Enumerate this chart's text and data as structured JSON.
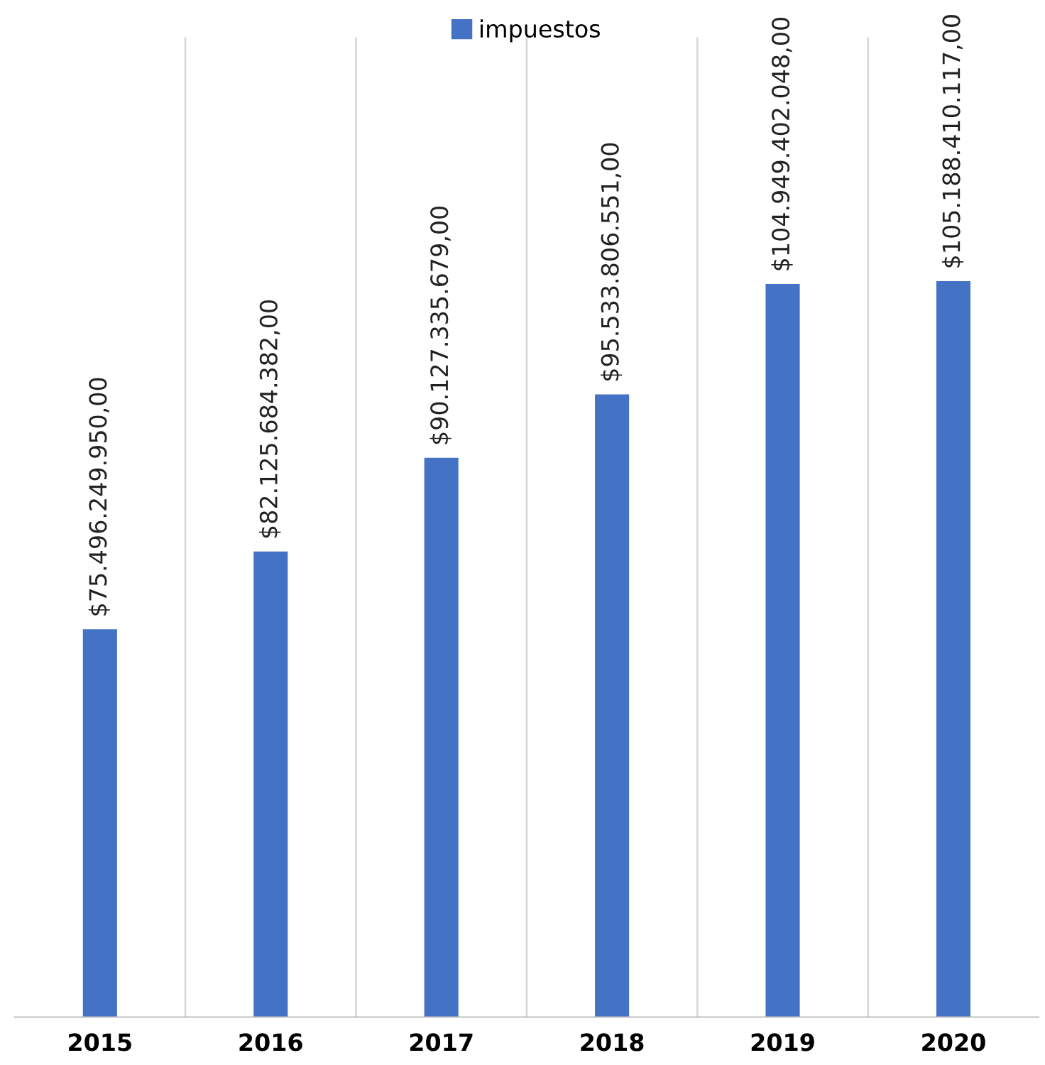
{
  "chart_data": {
    "type": "bar",
    "categories": [
      "2015",
      "2016",
      "2017",
      "2018",
      "2019",
      "2020"
    ],
    "series": [
      {
        "name": "impuestos",
        "color": "#4472c4",
        "values": [
          75496249950.0,
          82125684382.0,
          90127335679.0,
          95533806551.0,
          104949402048.0,
          105188410117.0
        ],
        "value_labels": [
          "$75.496.249.950,00",
          "$82.125.684.382,00",
          "$90.127.335.679,00",
          "$95.533.806.551,00",
          "$104.949.402.048,00",
          "$105.188.410.117,00"
        ]
      }
    ],
    "ylim": [
      42400000000,
      126000000000
    ],
    "tick_labels": "x",
    "grid": "x",
    "legend": "top"
  }
}
